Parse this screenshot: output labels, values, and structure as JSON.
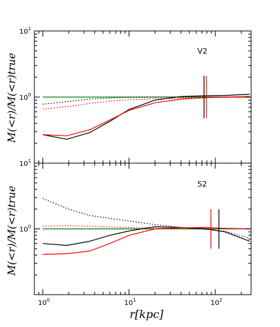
{
  "chart_data": {
    "type": "line",
    "xlabel": "r[kpc]",
    "ylabel": "M(<r)/M(<r)true",
    "x_scale": "log",
    "y_scale": "log",
    "xlim": [
      0.8,
      260
    ],
    "x_ticks": [
      {
        "base": "10",
        "exp": "0",
        "value": 1
      },
      {
        "base": "10",
        "exp": "1",
        "value": 10
      },
      {
        "base": "10",
        "exp": "2",
        "value": 100
      }
    ],
    "colors": {
      "black": "#000000",
      "red": "#ff0000",
      "green": "#008000"
    },
    "panels": [
      {
        "label": "V2",
        "ylim": [
          0.1,
          10
        ],
        "y_ticks": [
          {
            "base": "10",
            "exp": "1",
            "value": 10
          },
          {
            "base": "10",
            "exp": "0",
            "value": 1
          }
        ],
        "series": [
          {
            "color": "#008000",
            "style": "solid",
            "x": [
              1,
              250
            ],
            "y": [
              1.0,
              1.0
            ]
          },
          {
            "color": "#000000",
            "style": "dotted",
            "x": [
              1,
              2,
              3.5,
              6,
              10,
              20,
              40,
              80,
              130,
              250
            ],
            "y": [
              0.78,
              0.86,
              0.93,
              0.97,
              0.99,
              1.0,
              1.0,
              1.0,
              1.0,
              1.0
            ]
          },
          {
            "color": "#ff0000",
            "style": "dotted",
            "x": [
              1,
              2,
              3.5,
              6,
              10,
              20,
              40,
              80,
              130,
              250
            ],
            "y": [
              0.66,
              0.72,
              0.8,
              0.87,
              0.91,
              0.94,
              0.96,
              0.98,
              0.99,
              1.0
            ]
          },
          {
            "color": "#000000",
            "style": "solid",
            "x": [
              1,
              1.9,
              3.5,
              6,
              10,
              20,
              40,
              80,
              130,
              250
            ],
            "y": [
              0.27,
              0.23,
              0.29,
              0.43,
              0.65,
              0.9,
              1.02,
              1.05,
              1.06,
              1.1
            ]
          },
          {
            "color": "#ff0000",
            "style": "solid",
            "x": [
              1,
              1.9,
              3.5,
              6,
              10,
              20,
              40,
              80,
              130,
              250
            ],
            "y": [
              0.27,
              0.26,
              0.32,
              0.45,
              0.63,
              0.82,
              0.93,
              0.98,
              1.0,
              1.02
            ]
          }
        ],
        "markers": [
          {
            "color": "#000000",
            "x": 74,
            "y_range": [
              0.48,
              2.1
            ]
          },
          {
            "color": "#ff0000",
            "x": 79,
            "y_range": [
              0.48,
              2.1
            ]
          }
        ]
      },
      {
        "label": "S2",
        "ylim": [
          0.1,
          10
        ],
        "y_ticks": [
          {
            "base": "10",
            "exp": "1",
            "value": 10
          },
          {
            "base": "10",
            "exp": "0",
            "value": 1
          }
        ],
        "series": [
          {
            "color": "#008000",
            "style": "solid",
            "x": [
              1,
              250
            ],
            "y": [
              1.0,
              1.0
            ]
          },
          {
            "color": "#000000",
            "style": "dotted",
            "x": [
              1,
              2,
              3.5,
              6,
              10,
              20,
              40,
              80,
              130,
              250
            ],
            "y": [
              2.9,
              2.0,
              1.6,
              1.45,
              1.32,
              1.16,
              1.05,
              0.98,
              0.92,
              0.72
            ]
          },
          {
            "color": "#ff0000",
            "style": "dotted",
            "x": [
              1,
              2,
              3.5,
              6,
              10,
              20,
              40,
              80,
              130,
              250
            ],
            "y": [
              1.1,
              1.12,
              1.1,
              1.07,
              1.05,
              1.03,
              1.02,
              1.02,
              1.02,
              1.0
            ]
          },
          {
            "color": "#000000",
            "style": "solid",
            "x": [
              1,
              1.9,
              3.5,
              6,
              10,
              20,
              40,
              80,
              130,
              250
            ],
            "y": [
              0.6,
              0.56,
              0.65,
              0.8,
              0.93,
              1.08,
              1.05,
              1.0,
              0.9,
              0.65
            ]
          },
          {
            "color": "#ff0000",
            "style": "solid",
            "x": [
              1,
              1.9,
              3.5,
              6,
              10,
              20,
              40,
              80,
              130,
              250
            ],
            "y": [
              0.41,
              0.42,
              0.46,
              0.6,
              0.8,
              1.0,
              1.04,
              1.05,
              1.02,
              1.0
            ]
          }
        ],
        "markers": [
          {
            "color": "#ff0000",
            "x": 89,
            "y_range": [
              0.5,
              2.0
            ]
          },
          {
            "color": "#000000",
            "x": 110,
            "y_range": [
              0.5,
              2.0
            ]
          }
        ]
      }
    ]
  }
}
